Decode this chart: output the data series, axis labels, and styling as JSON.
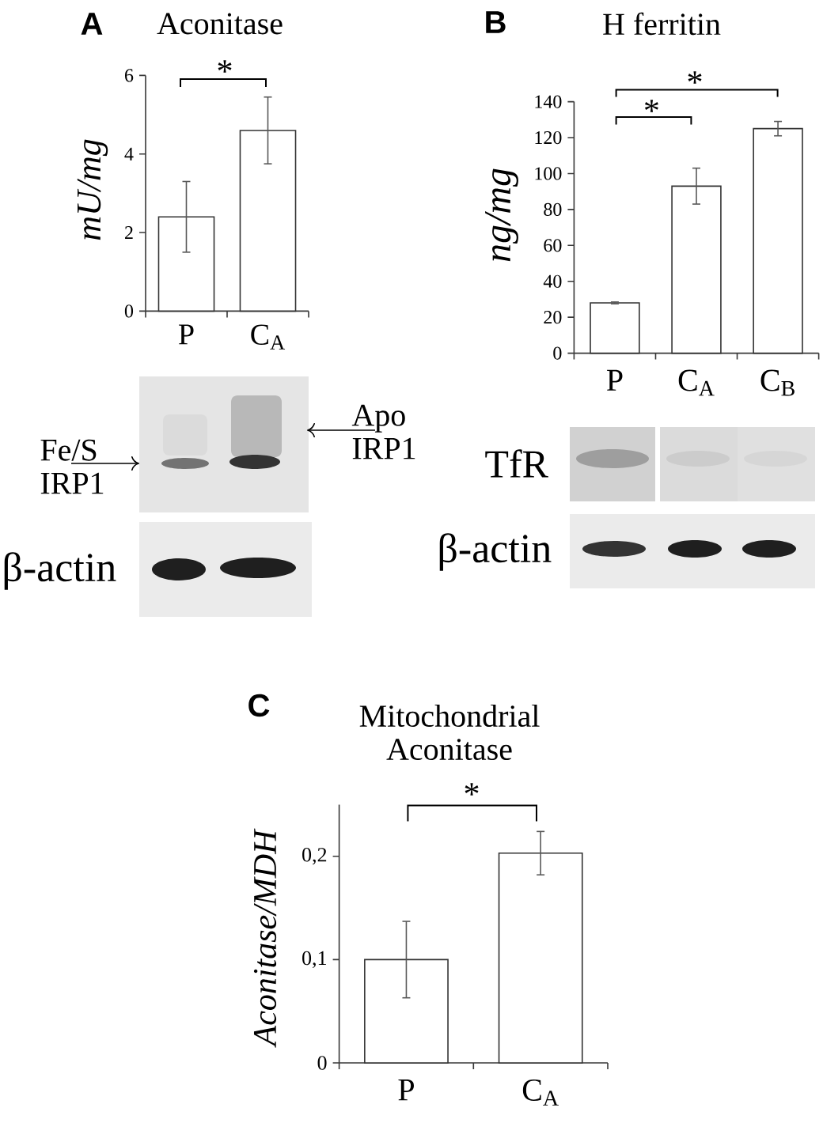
{
  "chart_data": [
    {
      "type": "bar",
      "title": "Aconitase",
      "ylabel": "mU/mg",
      "categories": [
        "P",
        "C$_{A}$"
      ],
      "values": [
        2.4,
        4.6
      ],
      "errors": [
        0.9,
        0.85
      ],
      "color": "#ffffff",
      "ylim": [
        0,
        6
      ],
      "yticks": [
        0,
        2,
        4,
        6
      ],
      "annotations": [
        "A",
        "*",
        "Fe/S IRP1",
        "Apo IRP1",
        "β-actin"
      ]
    },
    {
      "type": "bar",
      "title": "H ferritin",
      "ylabel": "ng/mg",
      "categories": [
        "P",
        "C$_{A}$",
        "C$_{B}$"
      ],
      "values": [
        28,
        93,
        125
      ],
      "errors": [
        0.5,
        10,
        4
      ],
      "color": "#ffffff",
      "ylim": [
        0,
        140
      ],
      "yticks": [
        0,
        20,
        40,
        60,
        80,
        100,
        120,
        140
      ],
      "annotations": [
        "B",
        "*",
        "*",
        "TfR",
        "β-actin"
      ]
    },
    {
      "type": "bar",
      "title": "Mitochondrial Aconitase",
      "ylabel": "Aconitase/MDH",
      "categories": [
        "P",
        "C$_{A}$"
      ],
      "values": [
        0.1,
        0.203
      ],
      "errors": [
        0.037,
        0.021
      ],
      "color": "#ffffff",
      "ylim": [
        0,
        0.25
      ],
      "yticks": [
        0,
        {
          "value": 0.1,
          "label": "0,1"
        },
        {
          "value": 0.2,
          "label": "0,2"
        }
      ],
      "annotations": [
        "C",
        "*"
      ]
    }
  ]
}
